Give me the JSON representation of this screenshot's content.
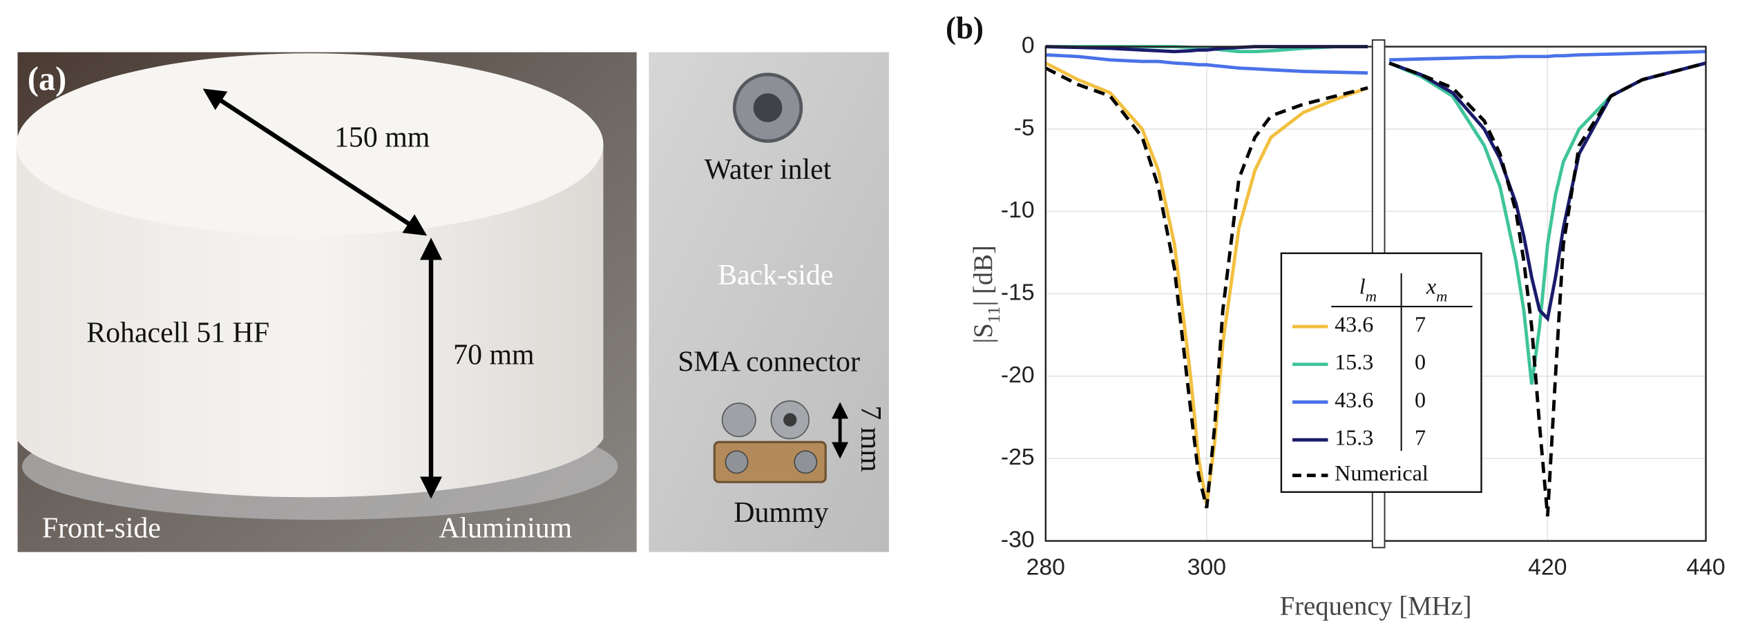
{
  "panel_a": {
    "label": "(a)",
    "diameter": "150 mm",
    "height": "70 mm",
    "material": "Rohacell 51 HF",
    "front_side": "Front-side",
    "base": "Aluminium",
    "water_inlet": "Water inlet",
    "back_side": "Back-side",
    "connector": "SMA connector",
    "offset": "7 mm",
    "dummy": "Dummy"
  },
  "chart_data": {
    "type": "line",
    "panel_label": "(b)",
    "xlabel": "Frequency [MHz]",
    "ylabel": [
      "|S",
      "11",
      "| [dB]"
    ],
    "x_axes": [
      {
        "xlim": [
          280,
          321
        ],
        "xticks": [
          280,
          300
        ]
      },
      {
        "xlim": [
          399,
          440
        ],
        "xticks": [
          420,
          440
        ]
      }
    ],
    "ylim": [
      -30,
      0
    ],
    "yticks": [
      0,
      -5,
      -10,
      -15,
      -20,
      -25,
      -30
    ],
    "grid": true,
    "legend_header": [
      [
        "l",
        "m"
      ],
      [
        "x",
        "m"
      ]
    ],
    "x": [
      280,
      284,
      288,
      292,
      294,
      296,
      298,
      299,
      300,
      301,
      302,
      304,
      306,
      308,
      312,
      316,
      320,
      400,
      404,
      408,
      412,
      414,
      416,
      417,
      418,
      419,
      420,
      421,
      422,
      424,
      428,
      432,
      436,
      440
    ],
    "series": [
      {
        "legend_cells": [
          "43.6",
          "7"
        ],
        "color": "#f2c040",
        "linestyle": "solid",
        "values": [
          -1,
          -2,
          -2.8,
          -5,
          -7.5,
          -12,
          -20,
          -25,
          -27.8,
          -24,
          -18,
          -11,
          -7.5,
          -5.5,
          -4,
          -3.2,
          -2.5,
          null,
          null,
          null,
          null,
          null,
          null,
          null,
          null,
          null,
          null,
          null,
          null,
          null,
          null,
          null,
          null,
          null
        ]
      },
      {
        "legend_cells": [
          "15.3",
          "0"
        ],
        "color": "#3fc49b",
        "linestyle": "solid",
        "values": [
          0,
          0,
          0,
          0,
          0,
          0,
          -0.05,
          -0.1,
          -0.1,
          -0.15,
          -0.2,
          -0.3,
          -0.3,
          -0.25,
          -0.1,
          0,
          0,
          -1,
          -1.8,
          -3,
          -6,
          -8.5,
          -13,
          -16,
          -20.5,
          -17,
          -12,
          -9,
          -7,
          -5,
          -3,
          -2,
          -1.5,
          -1
        ]
      },
      {
        "legend_cells": [
          "43.6",
          "0"
        ],
        "color": "#4a72e8",
        "linestyle": "solid",
        "values": [
          -0.5,
          -0.6,
          -0.8,
          -0.9,
          -0.9,
          -1,
          -1.05,
          -1.1,
          -1.1,
          -1.15,
          -1.2,
          -1.3,
          -1.35,
          -1.4,
          -1.5,
          -1.55,
          -1.6,
          -0.8,
          -0.75,
          -0.7,
          -0.65,
          -0.65,
          -0.6,
          -0.6,
          -0.6,
          -0.6,
          -0.6,
          -0.55,
          -0.55,
          -0.5,
          -0.45,
          -0.4,
          -0.35,
          -0.3
        ]
      },
      {
        "legend_cells": [
          "15.3",
          "7"
        ],
        "color": "#1b1b6b",
        "linestyle": "solid",
        "values": [
          0,
          -0.05,
          -0.1,
          -0.2,
          -0.25,
          -0.3,
          -0.25,
          -0.2,
          -0.2,
          -0.15,
          -0.1,
          -0.05,
          0,
          0,
          0,
          0,
          0,
          -1,
          -1.7,
          -2.8,
          -5,
          -6.8,
          -9.5,
          -11.5,
          -14,
          -16,
          -16.5,
          -14,
          -11,
          -6.5,
          -3,
          -2,
          -1.5,
          -1
        ]
      },
      {
        "name": "Numerical",
        "color": "#000000",
        "linestyle": "dashed",
        "values": [
          -1.3,
          -2.3,
          -3,
          -5.5,
          -8.5,
          -13.5,
          -22,
          -26,
          -28,
          -23,
          -16,
          -8,
          -5.5,
          -4.2,
          -3.5,
          -3,
          -2.5,
          -1,
          -1.7,
          -2.5,
          -4.5,
          -6.5,
          -10,
          -13,
          -17,
          -23,
          -28.5,
          -20,
          -12,
          -6,
          -3,
          -2,
          -1.5,
          -1
        ]
      }
    ]
  }
}
